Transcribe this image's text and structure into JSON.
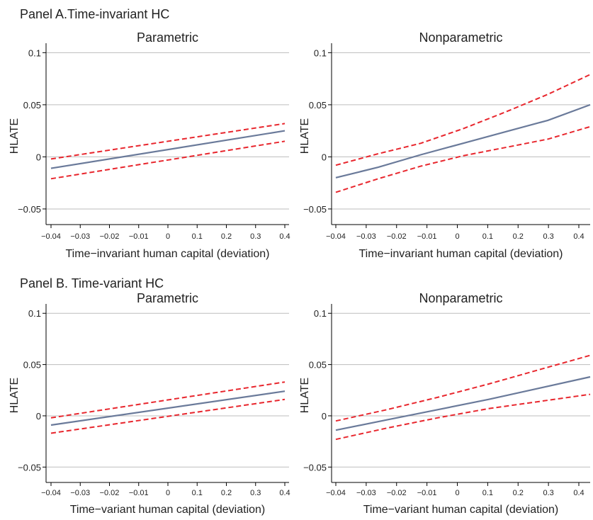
{
  "panel_a_title": "Panel A.Time-invariant HC",
  "panel_b_title": "Panel B. Time-variant HC",
  "colors": {
    "estimate": "#6a7a9a",
    "confidence_band": "#e8262d",
    "grid": "#bdbdbd"
  },
  "chart_data": [
    {
      "type": "line",
      "title": "Parametric",
      "xlabel": "Time−invariant human capital (deviation)",
      "ylabel": "HLATE",
      "xticks": [
        "−0.04",
        "−0.03",
        "−0.02",
        "−0.01",
        "0",
        "0.1",
        "0.2",
        "0.3",
        "0.4"
      ],
      "yticks": [
        "−0.05",
        "0",
        "0.05",
        "0.1"
      ],
      "ytick_values": [
        -0.05,
        0,
        0.05,
        0.1
      ],
      "ylim": [
        -0.065,
        0.105
      ],
      "grid": true,
      "series": [
        {
          "role": "upper",
          "values": [
            -0.002,
            0.032
          ]
        },
        {
          "role": "estimate",
          "values": [
            -0.011,
            0.025
          ]
        },
        {
          "role": "lower",
          "values": [
            -0.021,
            0.015
          ]
        }
      ]
    },
    {
      "type": "line",
      "title": "Nonparametric",
      "xlabel": "Time−invariant human capital (deviation)",
      "ylabel": "HLATE",
      "xticks": [
        "−0.04",
        "−0.03",
        "−0.02",
        "−0.01",
        "0",
        "0.1",
        "0.2",
        "0.3",
        "0.4"
      ],
      "yticks": [
        "−0.05",
        "0",
        "0.05",
        "0.1"
      ],
      "ytick_values": [
        -0.05,
        0,
        0.05,
        0.1
      ],
      "ylim": [
        -0.065,
        0.105
      ],
      "grid": true,
      "series": [
        {
          "role": "upper",
          "values": [
            -0.008,
            0.003,
            0.013,
            0.027,
            0.043,
            0.06,
            0.079
          ]
        },
        {
          "role": "estimate",
          "values": [
            -0.02,
            -0.01,
            0.002,
            0.013,
            0.024,
            0.035,
            0.05
          ]
        },
        {
          "role": "lower",
          "values": [
            -0.034,
            -0.021,
            -0.009,
            0.001,
            0.009,
            0.017,
            0.029
          ]
        }
      ]
    },
    {
      "type": "line",
      "title": "Parametric",
      "xlabel": "Time−variant human capital (deviation)",
      "ylabel": "HLATE",
      "xticks": [
        "−0.04",
        "−0.03",
        "−0.02",
        "−0.01",
        "0",
        "0.1",
        "0.2",
        "0.3",
        "0.4"
      ],
      "yticks": [
        "−0.05",
        "0",
        "0.05",
        "0.1"
      ],
      "ytick_values": [
        -0.05,
        0,
        0.05,
        0.1
      ],
      "ylim": [
        -0.065,
        0.105
      ],
      "grid": true,
      "series": [
        {
          "role": "upper",
          "values": [
            -0.002,
            0.033
          ]
        },
        {
          "role": "estimate",
          "values": [
            -0.009,
            0.024
          ]
        },
        {
          "role": "lower",
          "values": [
            -0.017,
            0.016
          ]
        }
      ]
    },
    {
      "type": "line",
      "title": "Nonparametric",
      "xlabel": "Time−variant human capital (deviation)",
      "ylabel": "HLATE",
      "xticks": [
        "−0.04",
        "−0.03",
        "−0.02",
        "−0.01",
        "0",
        "0.1",
        "0.2",
        "0.3",
        "0.4"
      ],
      "yticks": [
        "−0.05",
        "0",
        "0.05",
        "0.1"
      ],
      "ytick_values": [
        -0.05,
        0,
        0.05,
        0.1
      ],
      "ylim": [
        -0.065,
        0.105
      ],
      "grid": true,
      "series": [
        {
          "role": "upper",
          "values": [
            -0.005,
            0.006,
            0.018,
            0.031,
            0.045,
            0.059
          ]
        },
        {
          "role": "estimate",
          "values": [
            -0.014,
            -0.004,
            0.006,
            0.016,
            0.027,
            0.038
          ]
        },
        {
          "role": "lower",
          "values": [
            -0.023,
            -0.012,
            -0.002,
            0.007,
            0.014,
            0.021
          ]
        }
      ]
    }
  ]
}
